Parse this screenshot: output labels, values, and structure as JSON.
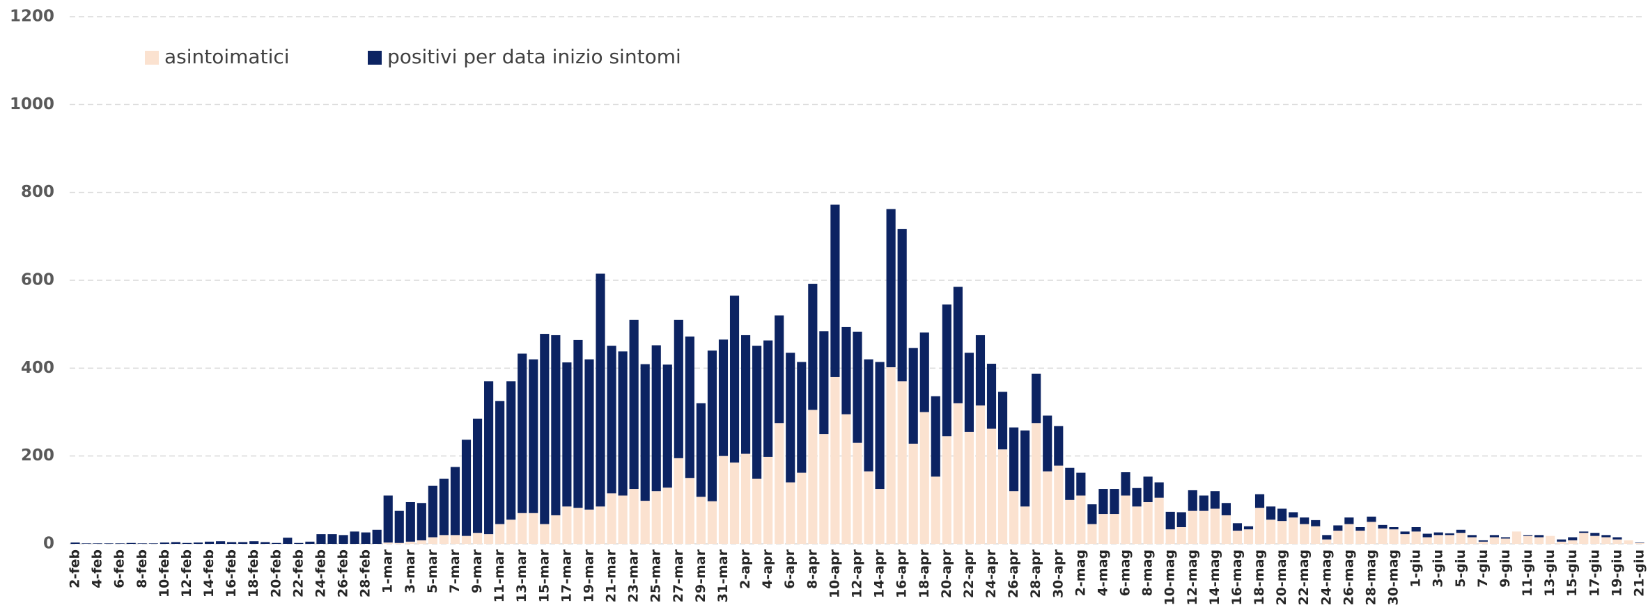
{
  "chart_data": {
    "type": "stacked_bar",
    "categories": [
      "2-feb",
      null,
      "4-feb",
      null,
      "6-feb",
      null,
      "8-feb",
      null,
      "10-feb",
      null,
      "12-feb",
      null,
      "14-feb",
      null,
      "16-feb",
      null,
      "18-feb",
      null,
      "20-feb",
      null,
      "22-feb",
      null,
      "24-feb",
      null,
      "26-feb",
      null,
      "28-feb",
      null,
      "1-mar",
      null,
      "3-mar",
      null,
      "5-mar",
      null,
      "7-mar",
      null,
      "9-mar",
      null,
      "11-mar",
      null,
      "13-mar",
      null,
      "15-mar",
      null,
      "17-mar",
      null,
      "19-mar",
      null,
      "21-mar",
      null,
      "23-mar",
      null,
      "25-mar",
      null,
      "27-mar",
      null,
      "29-mar",
      null,
      "31-mar",
      null,
      "2-apr",
      null,
      "4-apr",
      null,
      "6-apr",
      null,
      "8-apr",
      null,
      "10-apr",
      null,
      "12-apr",
      null,
      "14-apr",
      null,
      "16-apr",
      null,
      "18-apr",
      null,
      "20-apr",
      null,
      "22-apr",
      null,
      "24-apr",
      null,
      "26-apr",
      null,
      "28-apr",
      null,
      "30-apr",
      null,
      "2-mag",
      null,
      "4-mag",
      null,
      "6-mag",
      null,
      "8-mag",
      null,
      "10-mag",
      null,
      "12-mag",
      null,
      "14-mag",
      null,
      "16-mag",
      null,
      "18-mag",
      null,
      "20-mag",
      null,
      "22-mag",
      null,
      "24-mag",
      null,
      "26-mag",
      null,
      "28-mag",
      null,
      "30-mag",
      null,
      "1-giu",
      null,
      "3-giu",
      null,
      "5-giu",
      null,
      "7-giu",
      null,
      "9-giu",
      null,
      "11-giu",
      null,
      "13-giu",
      null,
      "15-giu",
      null,
      "17-giu",
      null,
      "19-giu",
      null,
      "21-giu"
    ],
    "series": [
      {
        "name": "asintoimatici",
        "color": "#fbe2d0",
        "values": [
          0,
          0,
          0,
          0,
          0,
          0,
          0,
          0,
          0,
          0,
          0,
          0,
          0,
          0,
          0,
          0,
          0,
          0,
          0,
          0,
          0,
          0,
          0,
          0,
          0,
          0,
          0,
          0,
          3,
          2,
          5,
          8,
          15,
          20,
          20,
          18,
          25,
          22,
          45,
          55,
          70,
          70,
          45,
          65,
          85,
          82,
          78,
          85,
          115,
          110,
          125,
          98,
          120,
          128,
          195,
          150,
          107,
          97,
          200,
          185,
          205,
          148,
          198,
          275,
          140,
          162,
          305,
          250,
          380,
          295,
          230,
          165,
          125,
          402,
          370,
          228,
          300,
          153,
          245,
          320,
          255,
          315,
          262,
          215,
          120,
          85,
          275,
          165,
          178,
          100,
          110,
          45,
          68,
          68,
          110,
          85,
          95,
          105,
          33,
          38,
          75,
          75,
          80,
          65,
          30,
          33,
          82,
          55,
          52,
          60,
          45,
          40,
          10,
          30,
          45,
          30,
          50,
          35,
          33,
          22,
          28,
          15,
          20,
          20,
          25,
          15,
          5,
          15,
          12,
          28,
          18,
          15,
          18,
          5,
          8,
          25,
          18,
          15,
          10,
          8,
          2
        ]
      },
      {
        "name": "positivi per data inizio sintomi",
        "color": "#0c2362",
        "values": [
          3,
          1,
          1,
          1,
          1,
          2,
          1,
          1,
          3,
          4,
          2,
          3,
          5,
          6,
          4,
          4,
          6,
          4,
          2,
          14,
          2,
          5,
          22,
          22,
          20,
          28,
          26,
          32,
          107,
          73,
          90,
          85,
          117,
          128,
          155,
          219,
          260,
          348,
          280,
          315,
          363,
          350,
          433,
          410,
          328,
          382,
          342,
          530,
          336,
          328,
          385,
          311,
          332,
          280,
          315,
          322,
          213,
          343,
          265,
          380,
          270,
          303,
          265,
          245,
          295,
          252,
          287,
          234,
          392,
          199,
          253,
          255,
          289,
          360,
          347,
          218,
          181,
          183,
          300,
          265,
          180,
          160,
          148,
          131,
          145,
          173,
          112,
          127,
          90,
          73,
          52,
          45,
          57,
          57,
          53,
          42,
          58,
          35,
          40,
          34,
          47,
          35,
          40,
          28,
          17,
          7,
          31,
          30,
          28,
          12,
          15,
          14,
          10,
          12,
          15,
          8,
          12,
          8,
          5,
          6,
          10,
          8,
          6,
          4,
          7,
          5,
          3,
          5,
          3,
          0,
          2,
          5,
          0,
          5,
          7,
          3,
          7,
          5,
          5,
          0,
          1
        ]
      }
    ],
    "ylim": [
      0,
      1200
    ],
    "yticks": [
      0,
      200,
      400,
      600,
      800,
      1000,
      1200
    ],
    "grid": true,
    "legend": "upper left"
  }
}
